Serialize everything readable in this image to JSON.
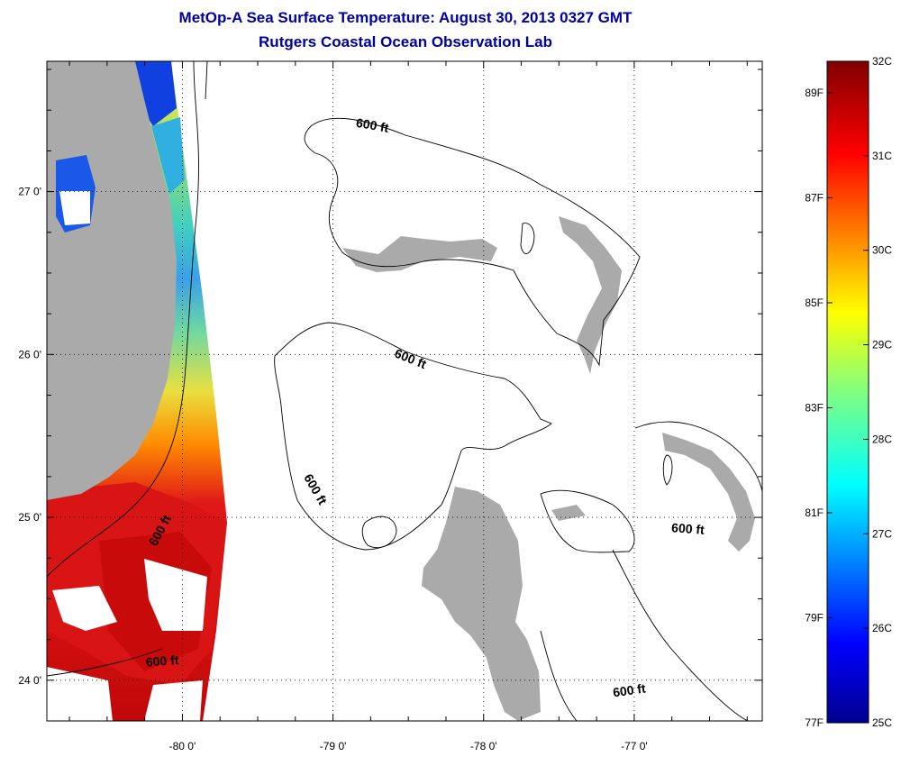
{
  "title": {
    "line1": "MetOp-A Sea Surface Temperature:  August 30, 2013 0327 GMT",
    "line2": "Rutgers Coastal Ocean Observation Lab"
  },
  "map": {
    "lon_range": [
      -80.9,
      -76.15
    ],
    "lat_range": [
      23.75,
      27.8
    ],
    "lon_ticks": [
      {
        "value": -80,
        "label": "-80 0'"
      },
      {
        "value": -79,
        "label": "-79 0'"
      },
      {
        "value": -78,
        "label": "-78 0'"
      },
      {
        "value": -77,
        "label": "-77 0'"
      }
    ],
    "lat_ticks": [
      {
        "value": 24,
        "label": "24 0'"
      },
      {
        "value": 25,
        "label": "25 0'"
      },
      {
        "value": 26,
        "label": "26 0'"
      },
      {
        "value": 27,
        "label": "27 0'"
      }
    ],
    "grid": "dotted",
    "land_color": "#aaaaaa",
    "isobath_label": "600 ft",
    "isobath_labels": [
      {
        "text": "600 ft"
      },
      {
        "text": "600 ft"
      },
      {
        "text": "600 ft"
      },
      {
        "text": "600 ft"
      },
      {
        "text": "600 ft"
      },
      {
        "text": "600 ft"
      }
    ]
  },
  "colorbar": {
    "celsius": [
      "32C",
      "31C",
      "30C",
      "29C",
      "28C",
      "27C",
      "26C",
      "25C"
    ],
    "fahrenheit": [
      "89F",
      "87F",
      "85F",
      "83F",
      "81F",
      "79F",
      "77F"
    ],
    "range_c": [
      25,
      32
    ],
    "colormap": "jet"
  }
}
